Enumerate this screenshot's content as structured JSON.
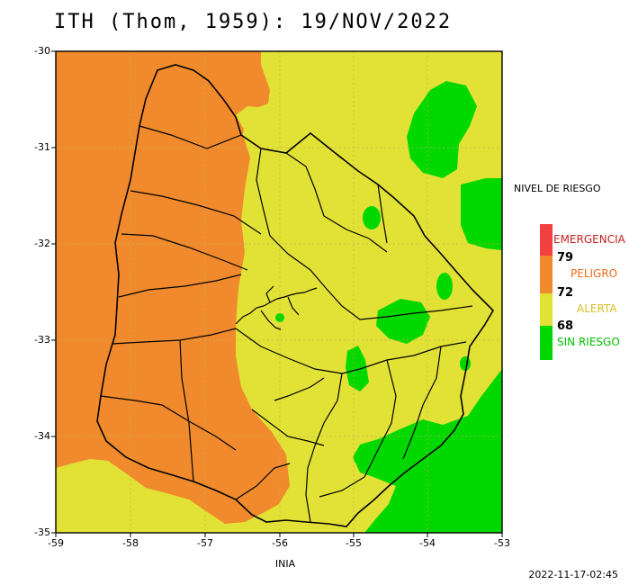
{
  "title": "ITH (Thom, 1959): 19/NOV/2022",
  "x_label": "INIA",
  "timestamp": "2022-11-17-02:45",
  "axes": {
    "x_ticks": [
      "-59",
      "-58",
      "-57",
      "-56",
      "-55",
      "-54",
      "-53"
    ],
    "y_ticks": [
      "-30",
      "-31",
      "-32",
      "-33",
      "-34",
      "-35"
    ]
  },
  "legend": {
    "title": "NIVEL DE RIESGO",
    "categories": [
      {
        "label": "EMERGENCIA",
        "color": "#f04040"
      },
      {
        "label": "PELIGRO",
        "color": "#f08a2c"
      },
      {
        "label": "ALERTA",
        "color": "#e2e236"
      },
      {
        "label": "SIN RIESGO",
        "color": "#00d800"
      }
    ],
    "thresholds": [
      "79",
      "72",
      "68"
    ]
  },
  "colors": {
    "peligro": "#f08a2c",
    "alerta": "#e2e236",
    "sin_riesgo": "#00d800",
    "grid": "#c8b050",
    "border": "#000000"
  }
}
